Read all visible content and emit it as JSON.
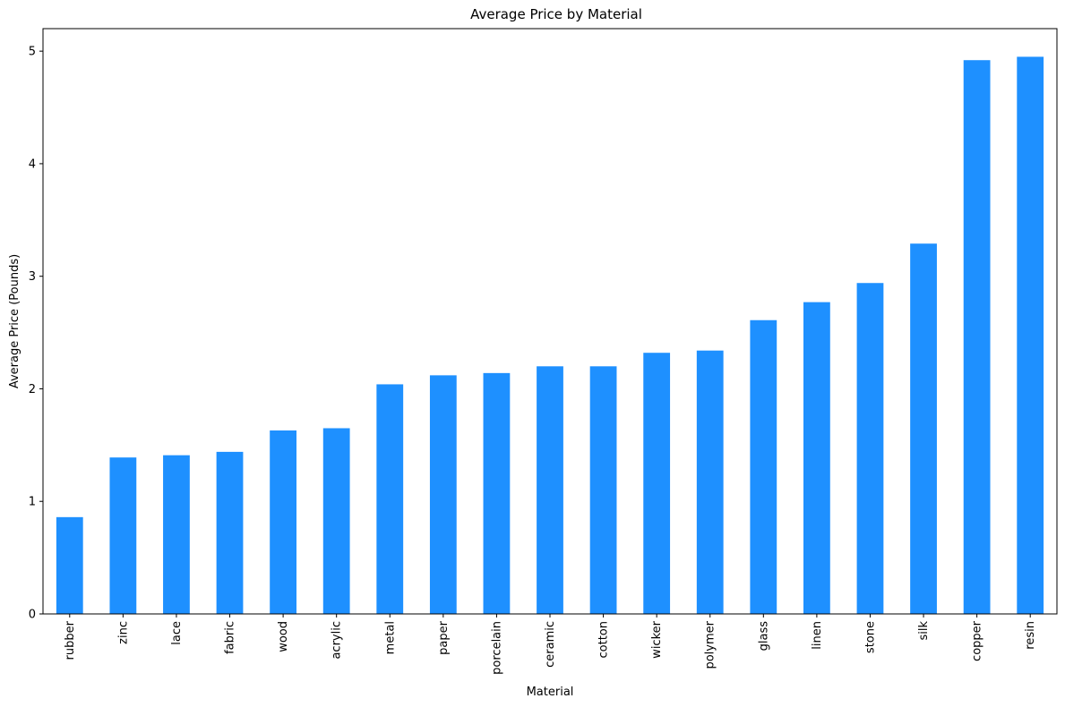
{
  "chart_data": {
    "type": "bar",
    "title": "Average Price by Material",
    "xlabel": "Material",
    "ylabel": "Average Price (Pounds)",
    "categories": [
      "rubber",
      "zinc",
      "lace",
      "fabric",
      "wood",
      "acrylic",
      "metal",
      "paper",
      "porcelain",
      "ceramic",
      "cotton",
      "wicker",
      "polymer",
      "glass",
      "linen",
      "stone",
      "silk",
      "copper",
      "resin"
    ],
    "values": [
      0.86,
      1.39,
      1.41,
      1.44,
      1.63,
      1.65,
      2.04,
      2.12,
      2.14,
      2.2,
      2.2,
      2.32,
      2.34,
      2.61,
      2.77,
      2.94,
      3.29,
      4.92,
      4.95
    ],
    "ylim": [
      0,
      5.2
    ],
    "yticks": [
      0,
      1,
      2,
      3,
      4,
      5
    ],
    "grid": false,
    "legend": "none",
    "bar_color": "#1e90ff"
  }
}
